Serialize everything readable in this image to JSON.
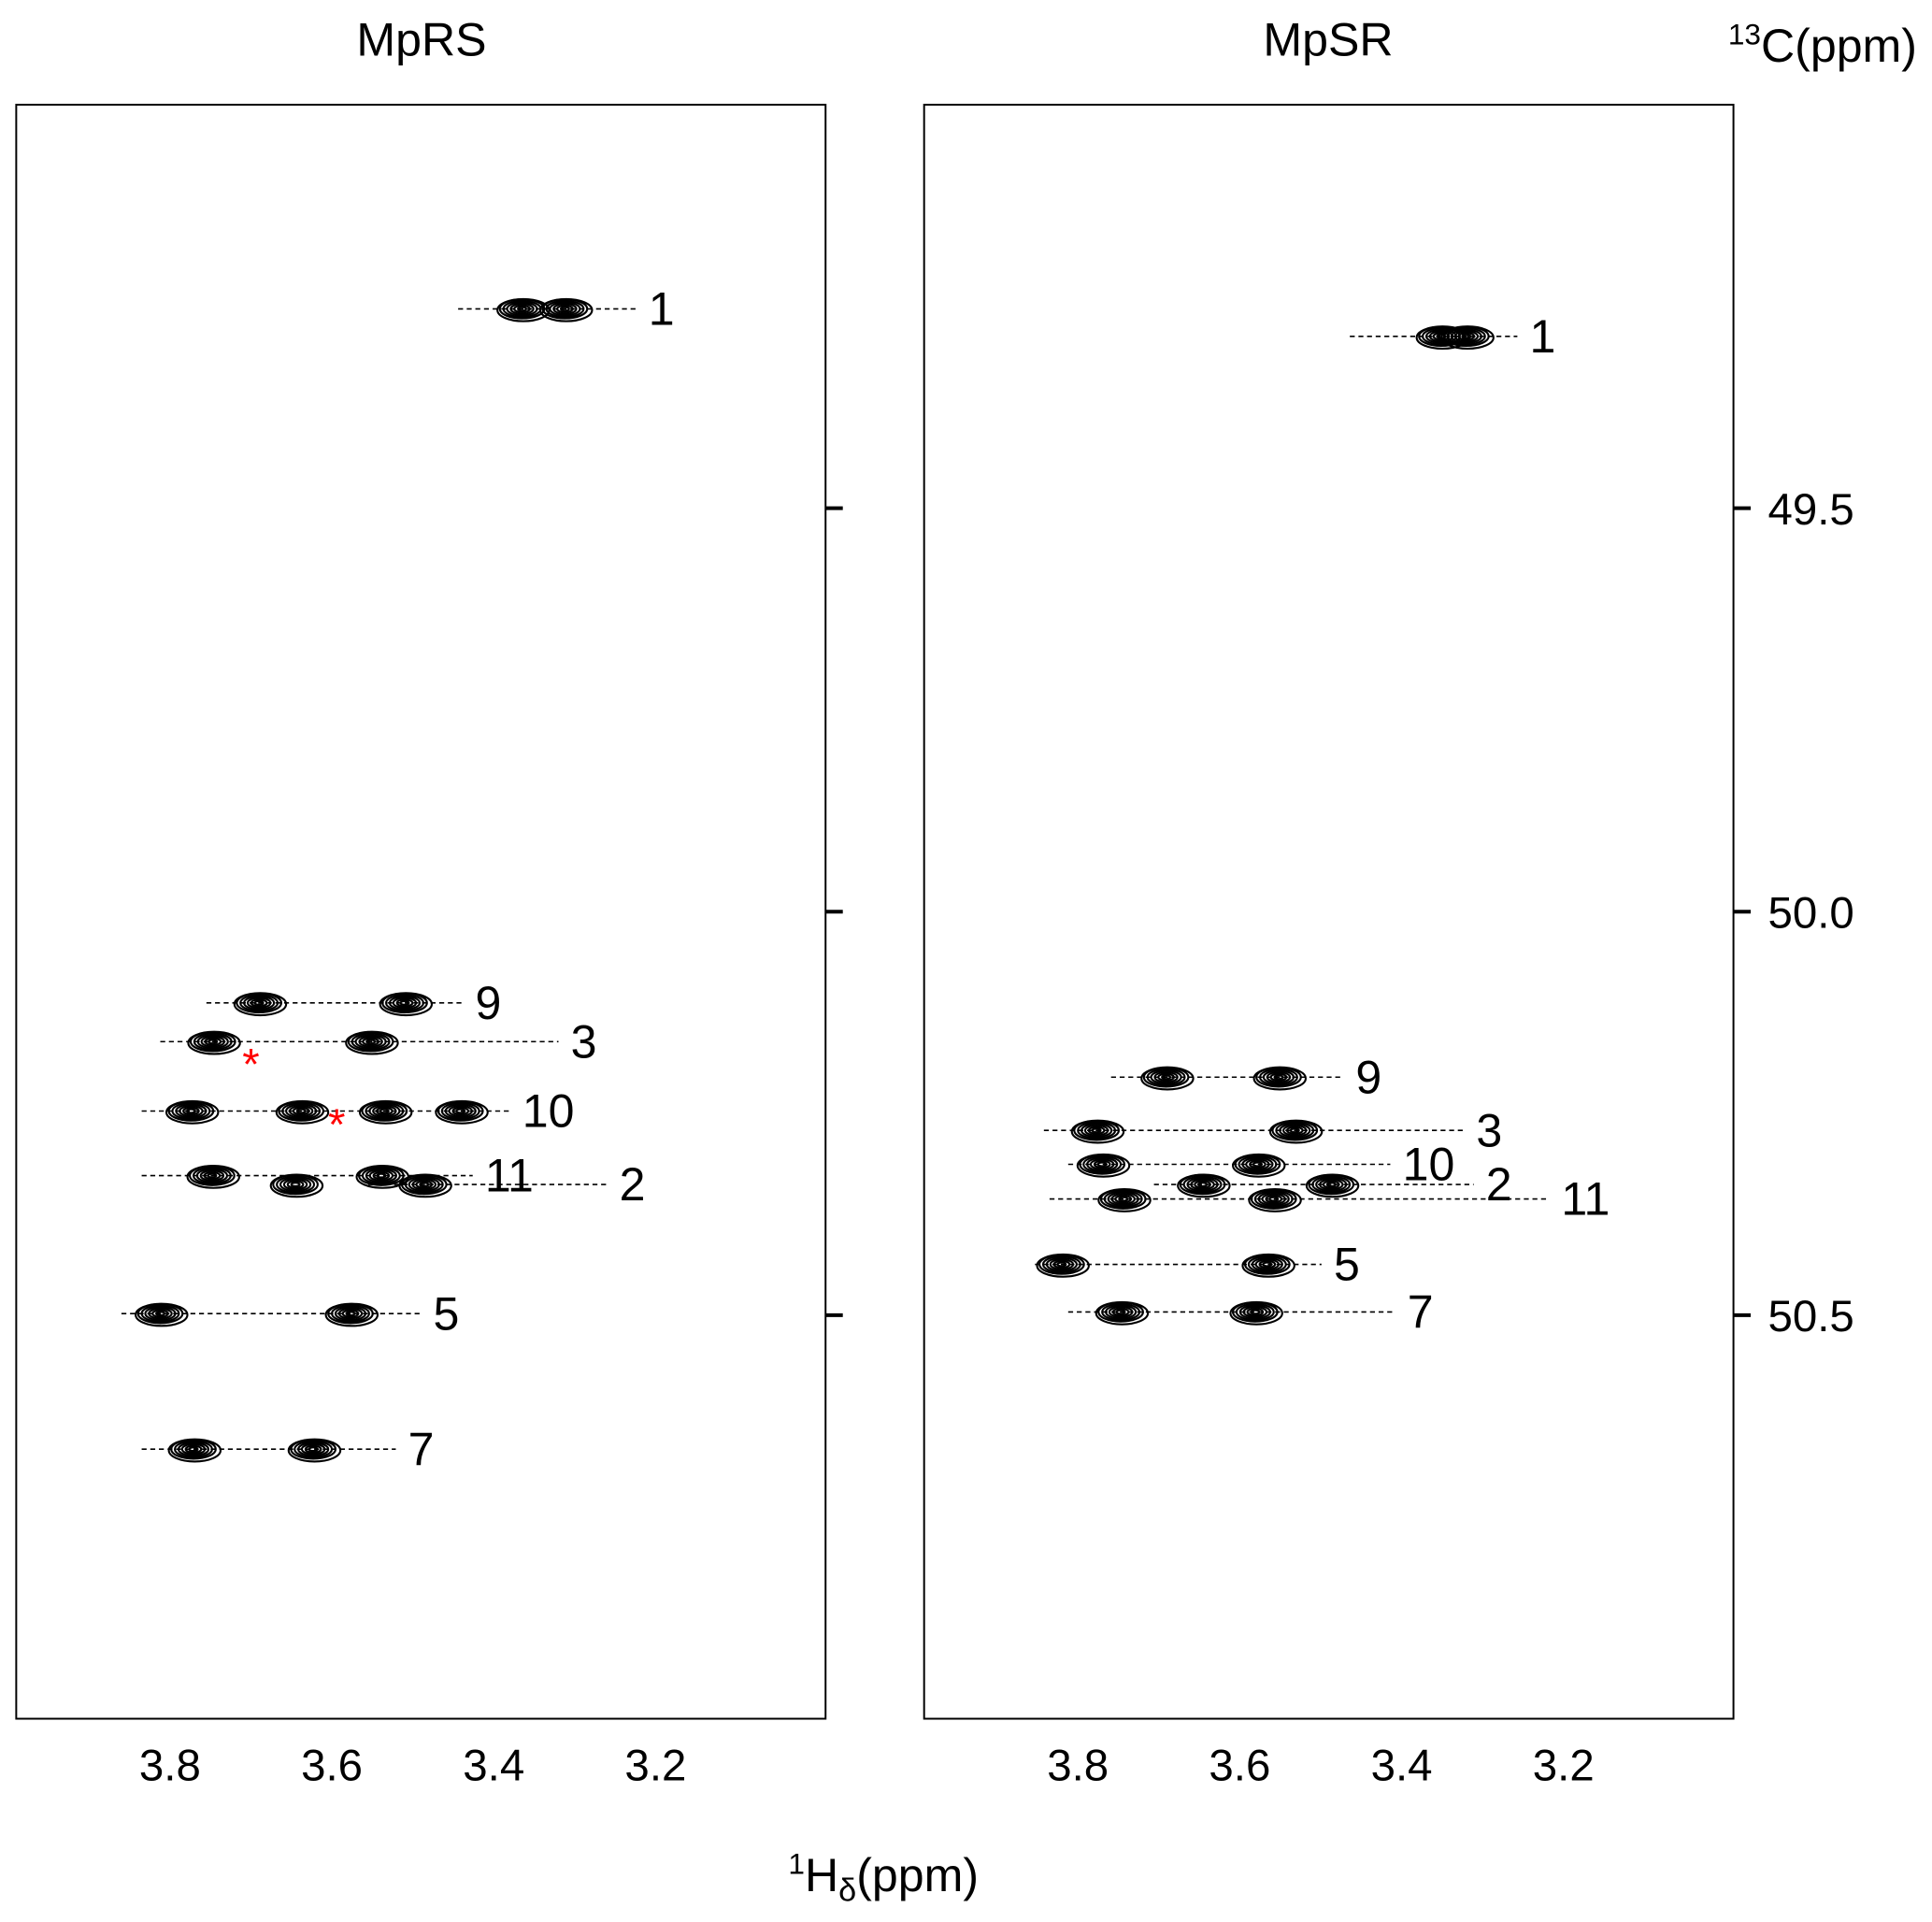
{
  "chart_data": {
    "type": "scatter",
    "subtype": "2D NMR contour spectrum",
    "xlabel": "1Hδ(ppm)",
    "xlabel_parts": {
      "sup": "1",
      "main": "H",
      "sub": "δ",
      "unit": "(ppm)"
    },
    "ylabel": "13C(ppm)",
    "ylabel_parts": {
      "sup": "13",
      "main": "C(ppm)"
    },
    "xlim": [
      3.99,
      2.99
    ],
    "ylim": [
      49.0,
      51.0
    ],
    "x_ticks": [
      "3.8",
      "3.6",
      "3.4",
      "3.2"
    ],
    "x_tick_values": [
      3.8,
      3.6,
      3.4,
      3.2
    ],
    "y_ticks": [
      "49.5",
      "50.0",
      "50.5"
    ],
    "y_tick_values": [
      49.5,
      50.0,
      50.5
    ],
    "colors": {
      "contour": "#000000",
      "marker": "#ff0000"
    },
    "panels": [
      {
        "title": "MpRS",
        "assignments": [
          {
            "label": "1",
            "c": 49.253,
            "h_peaks": [
              3.365,
              3.312
            ],
            "line": [
              3.444,
              3.224
            ]
          },
          {
            "label": "9",
            "c": 50.113,
            "h_peaks": [
              3.69,
              3.51
            ],
            "line": [
              3.755,
              3.438
            ]
          },
          {
            "label": "3",
            "c": 50.161,
            "h_peaks": [
              3.747,
              3.552
            ],
            "line": [
              3.812,
              3.32
            ]
          },
          {
            "label": "10",
            "c": 50.247,
            "h_peaks": [
              3.774,
              3.638,
              3.535,
              3.441
            ],
            "line": [
              3.835,
              3.38
            ]
          },
          {
            "label": "11",
            "c": 50.327,
            "h_peaks": [
              3.748,
              3.539
            ],
            "line": [
              3.835,
              3.426
            ]
          },
          {
            "label": "2",
            "c": 50.338,
            "h_peaks": [
              3.645,
              3.486
            ],
            "line": [
              3.555,
              3.26
            ]
          },
          {
            "label": "5",
            "c": 50.498,
            "h_peaks": [
              3.812,
              3.577
            ],
            "line": [
              3.86,
              3.49
            ]
          },
          {
            "label": "7",
            "c": 50.666,
            "h_peaks": [
              3.771,
              3.623
            ],
            "line": [
              3.835,
              3.521
            ]
          }
        ],
        "markers": [
          {
            "symbol": "*",
            "h": 3.7,
            "c": 50.18
          },
          {
            "symbol": "*",
            "h": 3.594,
            "c": 50.255
          }
        ]
      },
      {
        "title": "MpSR",
        "assignments": [
          {
            "label": "1",
            "c": 49.287,
            "h_peaks": [
              3.351,
              3.32
            ],
            "line": [
              3.464,
              3.257
            ]
          },
          {
            "label": "9",
            "c": 50.205,
            "h_peaks": [
              3.691,
              3.552
            ],
            "line": [
              3.759,
              3.472
            ]
          },
          {
            "label": "3",
            "c": 50.271,
            "h_peaks": [
              3.777,
              3.532
            ],
            "line": [
              3.842,
              3.323
            ]
          },
          {
            "label": "10",
            "c": 50.313,
            "h_peaks": [
              3.77,
              3.578
            ],
            "line": [
              3.812,
              3.414
            ]
          },
          {
            "label": "2",
            "c": 50.338,
            "h_peaks": [
              3.646,
              3.487
            ],
            "line": [
              3.706,
              3.311
            ]
          },
          {
            "label": "11",
            "c": 50.356,
            "h_peaks": [
              3.744,
              3.558
            ],
            "line": [
              3.835,
              3.218
            ]
          },
          {
            "label": "5",
            "c": 50.437,
            "h_peaks": [
              3.82,
              3.566
            ],
            "line": [
              3.853,
              3.499
            ]
          },
          {
            "label": "7",
            "c": 50.496,
            "h_peaks": [
              3.747,
              3.581
            ],
            "line": [
              3.812,
              3.408
            ]
          }
        ],
        "markers": []
      }
    ]
  }
}
